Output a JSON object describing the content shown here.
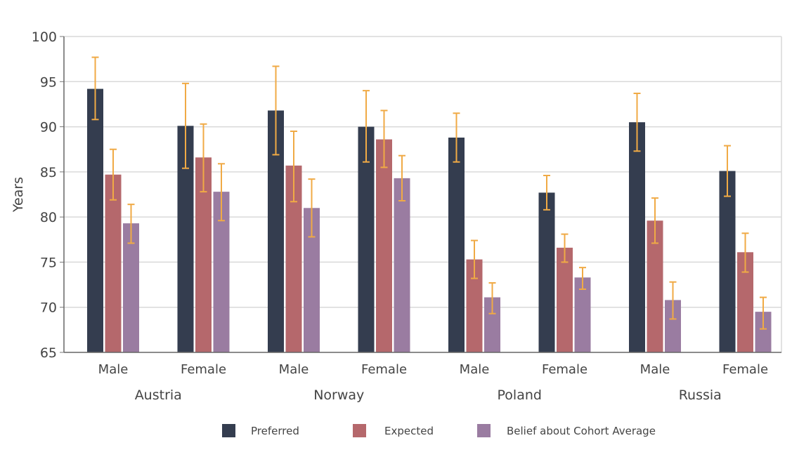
{
  "chart_data": {
    "type": "bar",
    "ylabel": "Years",
    "xlabel": "",
    "ylim": [
      65,
      100
    ],
    "yticks": [
      65,
      70,
      75,
      80,
      85,
      90,
      95,
      100
    ],
    "grid": true,
    "legend_position": "bottom",
    "countries": [
      "Austria",
      "Norway",
      "Poland",
      "Russia"
    ],
    "sexes": [
      "Male",
      "Female"
    ],
    "categories": [
      "Male",
      "Female",
      "Male",
      "Female",
      "Male",
      "Female",
      "Male",
      "Female"
    ],
    "series": [
      {
        "name": "Preferred",
        "color": "#343d4f",
        "values": [
          94.2,
          90.1,
          91.8,
          90.0,
          88.8,
          82.7,
          90.5,
          85.1
        ],
        "err_low": [
          90.8,
          85.4,
          86.9,
          86.1,
          86.1,
          80.8,
          87.3,
          82.3
        ],
        "err_high": [
          97.7,
          94.8,
          96.7,
          94.0,
          91.5,
          84.6,
          93.7,
          87.9
        ]
      },
      {
        "name": "Expected",
        "color": "#b5686c",
        "values": [
          84.7,
          86.6,
          85.7,
          88.6,
          75.3,
          76.6,
          79.6,
          76.1
        ],
        "err_low": [
          81.9,
          82.8,
          81.7,
          85.5,
          73.2,
          75.0,
          77.1,
          73.9
        ],
        "err_high": [
          87.5,
          90.3,
          89.5,
          91.8,
          77.4,
          78.1,
          82.1,
          78.2
        ]
      },
      {
        "name": "Belief about Cohort Average",
        "color": "#9a7ca1",
        "values": [
          79.3,
          82.8,
          81.0,
          84.3,
          71.1,
          73.3,
          70.8,
          69.5
        ],
        "err_low": [
          77.1,
          79.6,
          77.8,
          81.8,
          69.3,
          72.0,
          68.7,
          67.6
        ],
        "err_high": [
          81.4,
          85.9,
          84.2,
          86.8,
          72.7,
          74.4,
          72.8,
          71.1
        ]
      }
    ],
    "error_bar_color": "#f0aa45"
  }
}
